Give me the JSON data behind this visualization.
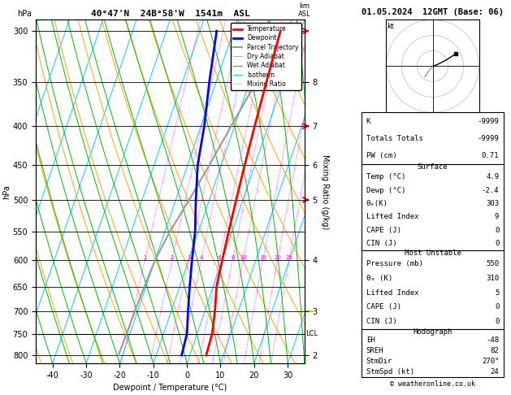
{
  "title_left": "40°47'N  24B°58'W  1541m  ASL",
  "title_right": "01.05.2024  12GMT (Base: 06)",
  "xlabel": "Dewpoint / Temperature (°C)",
  "ylabel_left": "hPa",
  "pressure_levels": [
    300,
    350,
    400,
    450,
    500,
    550,
    600,
    650,
    700,
    750,
    800
  ],
  "pressure_min": 290,
  "pressure_max": 820,
  "temp_min": -45,
  "temp_max": 35,
  "skew_factor": 35,
  "dry_adiabat_color": "#FFA500",
  "wet_adiabat_color": "#00BB00",
  "isotherm_color": "#00CCFF",
  "mixing_ratio_color": "#FF00FF",
  "temp_color": "#FF0000",
  "dewpoint_color": "#0000FF",
  "parcel_color": "#999999",
  "T_prof_T": [
    -6,
    -5,
    -4,
    -3,
    -2,
    -1,
    0,
    1,
    3,
    4.5,
    4.9
  ],
  "T_prof_p": [
    300,
    350,
    400,
    450,
    500,
    550,
    600,
    650,
    700,
    750,
    800
  ],
  "D_prof_T": [
    -25,
    -22,
    -19,
    -17,
    -14,
    -11,
    -9,
    -7,
    -5,
    -3,
    -2.4
  ],
  "D_prof_p": [
    300,
    350,
    400,
    450,
    500,
    550,
    600,
    650,
    700,
    750,
    800
  ],
  "parcel_T": [
    -6,
    -8,
    -11,
    -13.5,
    -16,
    -18.5,
    -20,
    -20.5,
    -20.8,
    -21,
    -21.2
  ],
  "parcel_p": [
    300,
    350,
    400,
    450,
    500,
    550,
    600,
    650,
    700,
    750,
    800
  ],
  "mixing_ratio_values": [
    1,
    2,
    3,
    4,
    6,
    8,
    10,
    15,
    20,
    25
  ],
  "km_ticks_p": [
    350,
    400,
    450,
    500,
    600,
    700,
    800
  ],
  "km_vals": [
    8,
    7,
    6,
    5,
    4,
    3,
    2
  ],
  "lcl_pressure": 750,
  "surface_temp": 4.9,
  "surface_dewp": -2.4,
  "surface_theta_e": 303,
  "surface_lifted_index": 9,
  "surface_cape": 0,
  "surface_cin": 0,
  "mu_pressure": 550,
  "mu_theta_e": 310,
  "mu_lifted_index": 5,
  "mu_cape": 0,
  "mu_cin": 0,
  "K_index": -9999,
  "totals_totals": -9999,
  "PW": 0.71,
  "EH": -48,
  "SREH": 82,
  "StmDir": 270,
  "StmSpd": 24,
  "copyright": "© weatheronline.co.uk",
  "wind_barb_levels": [
    300,
    400,
    500
  ],
  "wind_barb_colors": [
    "#FF0000",
    "#FF0000",
    "#FF0000"
  ],
  "hodo_u": [
    0,
    3,
    7,
    12,
    15
  ],
  "hodo_v": [
    0,
    1,
    3,
    6,
    8
  ],
  "hodo_u2": [
    0,
    -3,
    -5
  ],
  "hodo_v2": [
    0,
    -4,
    -7
  ]
}
